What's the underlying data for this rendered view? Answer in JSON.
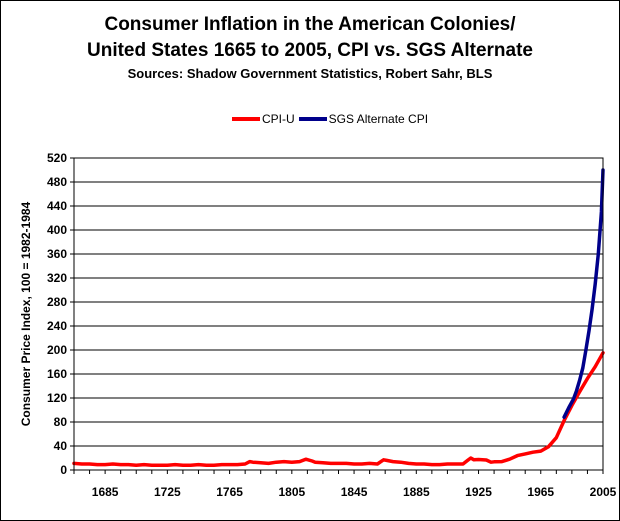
{
  "chart_data": {
    "type": "line",
    "title": "Consumer Inflation in the American Colonies/",
    "title_line2": "United States 1665 to 2005, CPI vs. SGS Alternate",
    "subtitle": "Sources: Shadow Government Statistics, Robert Sahr, BLS",
    "xlabel": "",
    "ylabel": "Consumer Price Index, 100 = 1982-1984",
    "xlim": [
      1665,
      2005
    ],
    "ylim": [
      0,
      520
    ],
    "x_ticks": [
      1685,
      1725,
      1765,
      1805,
      1845,
      1885,
      1925,
      1965,
      2005
    ],
    "y_ticks": [
      0,
      40,
      80,
      120,
      160,
      200,
      240,
      280,
      320,
      360,
      400,
      440,
      480,
      520
    ],
    "grid": "horizontal",
    "legend_position": "top",
    "series": [
      {
        "name": "CPI-U",
        "color": "#ff0000",
        "points": [
          [
            1665,
            11
          ],
          [
            1670,
            10
          ],
          [
            1675,
            10
          ],
          [
            1680,
            9
          ],
          [
            1685,
            9
          ],
          [
            1690,
            10
          ],
          [
            1695,
            9
          ],
          [
            1700,
            9
          ],
          [
            1705,
            8
          ],
          [
            1710,
            9
          ],
          [
            1715,
            8
          ],
          [
            1720,
            8
          ],
          [
            1725,
            8
          ],
          [
            1730,
            9
          ],
          [
            1735,
            8
          ],
          [
            1740,
            8
          ],
          [
            1745,
            9
          ],
          [
            1750,
            8
          ],
          [
            1755,
            8
          ],
          [
            1760,
            9
          ],
          [
            1765,
            9
          ],
          [
            1770,
            9
          ],
          [
            1775,
            10
          ],
          [
            1778,
            14
          ],
          [
            1780,
            13
          ],
          [
            1785,
            12
          ],
          [
            1790,
            11
          ],
          [
            1795,
            13
          ],
          [
            1800,
            14
          ],
          [
            1805,
            13
          ],
          [
            1810,
            14
          ],
          [
            1814,
            18
          ],
          [
            1818,
            15
          ],
          [
            1820,
            13
          ],
          [
            1825,
            12
          ],
          [
            1830,
            11
          ],
          [
            1835,
            11
          ],
          [
            1840,
            11
          ],
          [
            1845,
            10
          ],
          [
            1850,
            10
          ],
          [
            1855,
            11
          ],
          [
            1860,
            10
          ],
          [
            1864,
            17
          ],
          [
            1866,
            16
          ],
          [
            1870,
            14
          ],
          [
            1875,
            13
          ],
          [
            1880,
            11
          ],
          [
            1885,
            10
          ],
          [
            1890,
            10
          ],
          [
            1895,
            9
          ],
          [
            1900,
            9
          ],
          [
            1905,
            10
          ],
          [
            1910,
            10
          ],
          [
            1915,
            10
          ],
          [
            1918,
            16
          ],
          [
            1920,
            20
          ],
          [
            1922,
            17
          ],
          [
            1925,
            17.5
          ],
          [
            1930,
            16.7
          ],
          [
            1933,
            13
          ],
          [
            1935,
            13.7
          ],
          [
            1940,
            14
          ],
          [
            1945,
            18
          ],
          [
            1950,
            24
          ],
          [
            1955,
            26.8
          ],
          [
            1960,
            29.6
          ],
          [
            1965,
            31.5
          ],
          [
            1970,
            38.8
          ],
          [
            1975,
            53.8
          ],
          [
            1980,
            82.4
          ],
          [
            1985,
            107.6
          ],
          [
            1990,
            130.7
          ],
          [
            1995,
            152.4
          ],
          [
            2000,
            172.2
          ],
          [
            2005,
            195.3
          ]
        ]
      },
      {
        "name": "SGS Alternate CPI",
        "color": "#00008b",
        "points": [
          [
            1980,
            88
          ],
          [
            1983,
            104
          ],
          [
            1986,
            118
          ],
          [
            1988,
            132
          ],
          [
            1990,
            150
          ],
          [
            1992,
            170
          ],
          [
            1994,
            200
          ],
          [
            1996,
            232
          ],
          [
            1998,
            268
          ],
          [
            2000,
            310
          ],
          [
            2002,
            360
          ],
          [
            2004,
            430
          ],
          [
            2005,
            500
          ]
        ]
      }
    ]
  }
}
